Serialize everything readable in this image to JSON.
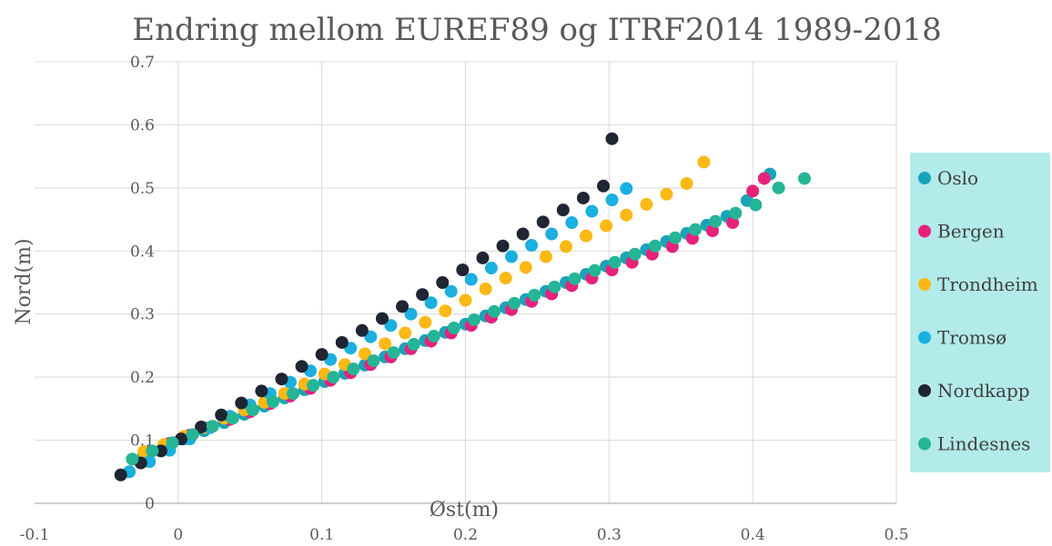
{
  "chart_data": {
    "type": "scatter",
    "title": "Endring mellom EUREF89 og ITRF2014 1989-2018",
    "xlabel": "Øst(m)",
    "ylabel": "Nord(m)",
    "xlim": [
      -0.1,
      0.5
    ],
    "ylim": [
      0,
      0.7
    ],
    "x_ticks": [
      "-0.1",
      "0",
      "0.1",
      "0.2",
      "0.3",
      "0.4",
      "0.5"
    ],
    "y_ticks": [
      "0",
      "0.1",
      "0.2",
      "0.3",
      "0.4",
      "0.5",
      "0.6",
      "0.7"
    ],
    "grid": true,
    "legend_position": "right",
    "legend_background": "#b2ebe9",
    "series": [
      {
        "name": "Oslo",
        "color": "#1aa3b8",
        "x": [
          -0.024,
          -0.01,
          0.004,
          0.018,
          0.032,
          0.046,
          0.06,
          0.074,
          0.088,
          0.102,
          0.116,
          0.13,
          0.144,
          0.158,
          0.172,
          0.186,
          0.2,
          0.214,
          0.228,
          0.242,
          0.256,
          0.27,
          0.284,
          0.298,
          0.312,
          0.326,
          0.34,
          0.354,
          0.368,
          0.382,
          0.396,
          0.412
        ],
        "y": [
          0.078,
          0.09,
          0.102,
          0.115,
          0.128,
          0.141,
          0.154,
          0.167,
          0.18,
          0.193,
          0.206,
          0.219,
          0.232,
          0.245,
          0.258,
          0.271,
          0.284,
          0.297,
          0.31,
          0.323,
          0.336,
          0.35,
          0.363,
          0.376,
          0.389,
          0.402,
          0.415,
          0.428,
          0.441,
          0.455,
          0.48,
          0.522
        ]
      },
      {
        "name": "Bergen",
        "color": "#e8227a",
        "x": [
          -0.02,
          -0.006,
          0.008,
          0.022,
          0.036,
          0.05,
          0.064,
          0.078,
          0.092,
          0.106,
          0.12,
          0.134,
          0.148,
          0.162,
          0.176,
          0.19,
          0.204,
          0.218,
          0.232,
          0.246,
          0.26,
          0.274,
          0.288,
          0.302,
          0.316,
          0.33,
          0.344,
          0.358,
          0.372,
          0.386,
          0.4,
          0.408
        ],
        "y": [
          0.082,
          0.095,
          0.108,
          0.12,
          0.133,
          0.145,
          0.158,
          0.17,
          0.182,
          0.195,
          0.207,
          0.22,
          0.232,
          0.245,
          0.257,
          0.27,
          0.282,
          0.295,
          0.307,
          0.32,
          0.332,
          0.345,
          0.357,
          0.37,
          0.382,
          0.395,
          0.407,
          0.42,
          0.432,
          0.445,
          0.495,
          0.515
        ]
      },
      {
        "name": "Trondheim",
        "color": "#fcb813",
        "x": [
          -0.024,
          -0.01,
          0.004,
          0.018,
          0.032,
          0.046,
          0.06,
          0.074,
          0.088,
          0.102,
          0.116,
          0.13,
          0.144,
          0.158,
          0.172,
          0.186,
          0.2,
          0.214,
          0.228,
          0.242,
          0.256,
          0.27,
          0.284,
          0.298,
          0.312,
          0.326,
          0.34,
          0.354,
          0.366
        ],
        "y": [
          0.082,
          0.093,
          0.106,
          0.12,
          0.135,
          0.148,
          0.16,
          0.174,
          0.189,
          0.205,
          0.22,
          0.237,
          0.253,
          0.27,
          0.287,
          0.305,
          0.322,
          0.34,
          0.357,
          0.374,
          0.391,
          0.407,
          0.424,
          0.44,
          0.457,
          0.474,
          0.49,
          0.507,
          0.541
        ]
      },
      {
        "name": "Tromsø",
        "color": "#1ab0e0",
        "x": [
          -0.034,
          -0.02,
          -0.006,
          0.008,
          0.022,
          0.036,
          0.05,
          0.064,
          0.078,
          0.092,
          0.106,
          0.12,
          0.134,
          0.148,
          0.162,
          0.176,
          0.19,
          0.204,
          0.218,
          0.232,
          0.246,
          0.26,
          0.274,
          0.288,
          0.302,
          0.312
        ],
        "y": [
          0.05,
          0.066,
          0.084,
          0.102,
          0.12,
          0.138,
          0.156,
          0.174,
          0.192,
          0.21,
          0.228,
          0.246,
          0.264,
          0.282,
          0.3,
          0.318,
          0.336,
          0.355,
          0.373,
          0.391,
          0.409,
          0.427,
          0.445,
          0.463,
          0.481,
          0.499
        ]
      },
      {
        "name": "Nordkapp",
        "color": "#1f2532",
        "x": [
          -0.04,
          -0.026,
          -0.012,
          0.002,
          0.016,
          0.03,
          0.044,
          0.058,
          0.072,
          0.086,
          0.1,
          0.114,
          0.128,
          0.142,
          0.156,
          0.17,
          0.184,
          0.198,
          0.212,
          0.226,
          0.24,
          0.254,
          0.268,
          0.282,
          0.296,
          0.302
        ],
        "y": [
          0.045,
          0.064,
          0.083,
          0.102,
          0.121,
          0.14,
          0.159,
          0.178,
          0.197,
          0.217,
          0.236,
          0.255,
          0.274,
          0.293,
          0.312,
          0.331,
          0.35,
          0.37,
          0.389,
          0.408,
          0.427,
          0.446,
          0.465,
          0.484,
          0.503,
          0.578
        ]
      },
      {
        "name": "Lindesnes",
        "color": "#25b596",
        "x": [
          -0.032,
          -0.018,
          -0.004,
          0.01,
          0.024,
          0.038,
          0.052,
          0.066,
          0.08,
          0.094,
          0.108,
          0.122,
          0.136,
          0.15,
          0.164,
          0.178,
          0.192,
          0.206,
          0.22,
          0.234,
          0.248,
          0.262,
          0.276,
          0.29,
          0.304,
          0.318,
          0.332,
          0.346,
          0.36,
          0.374,
          0.388,
          0.402,
          0.418,
          0.436
        ],
        "y": [
          0.07,
          0.083,
          0.096,
          0.109,
          0.122,
          0.135,
          0.148,
          0.161,
          0.174,
          0.187,
          0.2,
          0.213,
          0.226,
          0.239,
          0.252,
          0.265,
          0.278,
          0.291,
          0.304,
          0.317,
          0.33,
          0.343,
          0.356,
          0.369,
          0.382,
          0.395,
          0.408,
          0.421,
          0.434,
          0.447,
          0.46,
          0.473,
          0.5,
          0.515
        ]
      }
    ]
  }
}
